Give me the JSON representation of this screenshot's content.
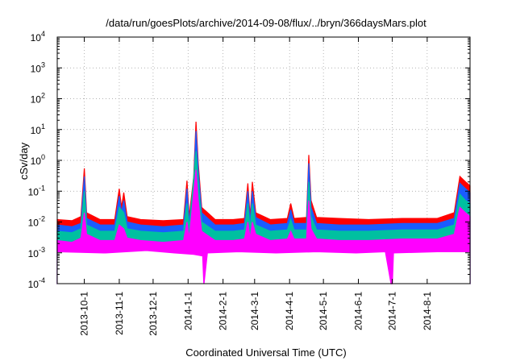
{
  "chart_data": {
    "type": "area",
    "title": "/data/run/goesPlots/archive/2014-09-08/flux/../bryn/366daysMars.plot",
    "xlabel": "Coordinated Universal Time (UTC)",
    "ylabel": "cSv/day",
    "y_scale": "log",
    "ylim": [
      0.0001,
      10000
    ],
    "y_ticks": [
      {
        "value": 0.0001,
        "base": "10",
        "exp": "-4"
      },
      {
        "value": 0.001,
        "base": "10",
        "exp": "-3"
      },
      {
        "value": 0.01,
        "base": "10",
        "exp": "-2"
      },
      {
        "value": 0.1,
        "base": "10",
        "exp": "-1"
      },
      {
        "value": 1,
        "base": "10",
        "exp": "0"
      },
      {
        "value": 10,
        "base": "10",
        "exp": "1"
      },
      {
        "value": 100,
        "base": "10",
        "exp": "2"
      },
      {
        "value": 1000,
        "base": "10",
        "exp": "3"
      },
      {
        "value": 10000,
        "base": "10",
        "exp": "4"
      }
    ],
    "xlim": [
      "2013-09-07",
      "2014-09-08"
    ],
    "x_ticks": [
      {
        "label": "2013-10-1",
        "date": "2013-10-01"
      },
      {
        "label": "2013-11-1",
        "date": "2013-11-01"
      },
      {
        "label": "2013-12-1",
        "date": "2013-12-01"
      },
      {
        "label": "2014-1-1",
        "date": "2014-01-01"
      },
      {
        "label": "2014-2-1",
        "date": "2014-02-01"
      },
      {
        "label": "2014-3-1",
        "date": "2014-03-01"
      },
      {
        "label": "2014-4-1",
        "date": "2014-04-01"
      },
      {
        "label": "2014-5-1",
        "date": "2014-05-01"
      },
      {
        "label": "2014-6-1",
        "date": "2014-06-01"
      },
      {
        "label": "2014-7-1",
        "date": "2014-07-01"
      },
      {
        "label": "2014-8-1",
        "date": "2014-08-01"
      }
    ],
    "grid": true,
    "series": [
      {
        "color": "#ff0000",
        "points": [
          [
            "2013-09-07",
            0.012
          ],
          [
            "2013-09-20",
            0.011
          ],
          [
            "2013-09-28",
            0.015
          ],
          [
            "2013-10-01",
            0.55
          ],
          [
            "2013-10-03",
            0.02
          ],
          [
            "2013-10-15",
            0.012
          ],
          [
            "2013-10-28",
            0.012
          ],
          [
            "2013-11-01",
            0.12
          ],
          [
            "2013-11-03",
            0.03
          ],
          [
            "2013-11-05",
            0.09
          ],
          [
            "2013-11-08",
            0.015
          ],
          [
            "2013-11-20",
            0.012
          ],
          [
            "2013-12-10",
            0.011
          ],
          [
            "2013-12-28",
            0.012
          ],
          [
            "2013-12-31",
            0.22
          ],
          [
            "2014-01-02",
            0.015
          ],
          [
            "2014-01-06",
            0.3
          ],
          [
            "2014-01-08",
            18
          ],
          [
            "2014-01-10",
            0.8
          ],
          [
            "2014-01-13",
            0.03
          ],
          [
            "2014-01-25",
            0.012
          ],
          [
            "2014-02-10",
            0.012
          ],
          [
            "2014-02-20",
            0.013
          ],
          [
            "2014-02-23",
            0.18
          ],
          [
            "2014-02-25",
            0.015
          ],
          [
            "2014-02-27",
            0.2
          ],
          [
            "2014-03-02",
            0.02
          ],
          [
            "2014-03-15",
            0.012
          ],
          [
            "2014-03-30",
            0.013
          ],
          [
            "2014-04-02",
            0.04
          ],
          [
            "2014-04-05",
            0.013
          ],
          [
            "2014-04-16",
            0.014
          ],
          [
            "2014-04-18",
            1.5
          ],
          [
            "2014-04-20",
            0.05
          ],
          [
            "2014-04-25",
            0.014
          ],
          [
            "2014-05-15",
            0.013
          ],
          [
            "2014-06-10",
            0.012
          ],
          [
            "2014-07-10",
            0.013
          ],
          [
            "2014-08-10",
            0.013
          ],
          [
            "2014-08-25",
            0.02
          ],
          [
            "2014-08-30",
            0.3
          ],
          [
            "2014-09-04",
            0.2
          ],
          [
            "2014-09-08",
            0.15
          ]
        ]
      },
      {
        "color": "#1a5cff",
        "points": [
          [
            "2013-09-07",
            0.008
          ],
          [
            "2013-09-20",
            0.007
          ],
          [
            "2013-09-28",
            0.009
          ],
          [
            "2013-10-01",
            0.3
          ],
          [
            "2013-10-03",
            0.013
          ],
          [
            "2013-10-15",
            0.008
          ],
          [
            "2013-10-28",
            0.008
          ],
          [
            "2013-11-01",
            0.07
          ],
          [
            "2013-11-03",
            0.02
          ],
          [
            "2013-11-05",
            0.05
          ],
          [
            "2013-11-08",
            0.01
          ],
          [
            "2013-11-20",
            0.008
          ],
          [
            "2013-12-10",
            0.007
          ],
          [
            "2013-12-28",
            0.008
          ],
          [
            "2013-12-31",
            0.12
          ],
          [
            "2014-01-02",
            0.01
          ],
          [
            "2014-01-06",
            0.2
          ],
          [
            "2014-01-08",
            9
          ],
          [
            "2014-01-10",
            0.5
          ],
          [
            "2014-01-13",
            0.02
          ],
          [
            "2014-01-25",
            0.008
          ],
          [
            "2014-02-10",
            0.008
          ],
          [
            "2014-02-20",
            0.009
          ],
          [
            "2014-02-23",
            0.1
          ],
          [
            "2014-02-25",
            0.01
          ],
          [
            "2014-02-27",
            0.1
          ],
          [
            "2014-03-02",
            0.014
          ],
          [
            "2014-03-15",
            0.008
          ],
          [
            "2014-03-30",
            0.009
          ],
          [
            "2014-04-02",
            0.025
          ],
          [
            "2014-04-05",
            0.009
          ],
          [
            "2014-04-16",
            0.009
          ],
          [
            "2014-04-18",
            0.8
          ],
          [
            "2014-04-20",
            0.03
          ],
          [
            "2014-04-25",
            0.009
          ],
          [
            "2014-05-15",
            0.008
          ],
          [
            "2014-06-10",
            0.008
          ],
          [
            "2014-07-10",
            0.009
          ],
          [
            "2014-08-10",
            0.009
          ],
          [
            "2014-08-25",
            0.013
          ],
          [
            "2014-08-30",
            0.18
          ],
          [
            "2014-09-04",
            0.12
          ],
          [
            "2014-09-08",
            0.09
          ]
        ]
      },
      {
        "color": "#00c0a0",
        "points": [
          [
            "2013-09-07",
            0.005
          ],
          [
            "2013-09-20",
            0.0045
          ],
          [
            "2013-09-28",
            0.006
          ],
          [
            "2013-10-01",
            0.1
          ],
          [
            "2013-10-03",
            0.008
          ],
          [
            "2013-10-15",
            0.005
          ],
          [
            "2013-10-28",
            0.005
          ],
          [
            "2013-11-01",
            0.03
          ],
          [
            "2013-11-05",
            0.02
          ],
          [
            "2013-11-08",
            0.006
          ],
          [
            "2013-11-20",
            0.005
          ],
          [
            "2013-12-10",
            0.0045
          ],
          [
            "2013-12-28",
            0.005
          ],
          [
            "2013-12-31",
            0.04
          ],
          [
            "2014-01-02",
            0.006
          ],
          [
            "2014-01-08",
            2
          ],
          [
            "2014-01-10",
            0.2
          ],
          [
            "2014-01-13",
            0.01
          ],
          [
            "2014-01-25",
            0.005
          ],
          [
            "2014-02-10",
            0.005
          ],
          [
            "2014-02-20",
            0.0055
          ],
          [
            "2014-02-23",
            0.04
          ],
          [
            "2014-02-25",
            0.006
          ],
          [
            "2014-02-27",
            0.04
          ],
          [
            "2014-03-02",
            0.008
          ],
          [
            "2014-03-15",
            0.005
          ],
          [
            "2014-03-30",
            0.0055
          ],
          [
            "2014-04-02",
            0.012
          ],
          [
            "2014-04-05",
            0.0055
          ],
          [
            "2014-04-16",
            0.0055
          ],
          [
            "2014-04-18",
            0.2
          ],
          [
            "2014-04-20",
            0.015
          ],
          [
            "2014-04-25",
            0.0055
          ],
          [
            "2014-05-15",
            0.005
          ],
          [
            "2014-06-10",
            0.005
          ],
          [
            "2014-07-10",
            0.0055
          ],
          [
            "2014-08-10",
            0.0055
          ],
          [
            "2014-08-25",
            0.008
          ],
          [
            "2014-08-30",
            0.08
          ],
          [
            "2014-09-04",
            0.05
          ],
          [
            "2014-09-08",
            0.04
          ]
        ]
      },
      {
        "color": "#ff00ff",
        "points": [
          [
            "2013-09-07",
            0.0025
          ],
          [
            "2013-09-20",
            0.0022
          ],
          [
            "2013-09-28",
            0.003
          ],
          [
            "2013-10-01",
            0.02
          ],
          [
            "2013-10-03",
            0.004
          ],
          [
            "2013-10-15",
            0.0025
          ],
          [
            "2013-10-28",
            0.0025
          ],
          [
            "2013-11-01",
            0.008
          ],
          [
            "2013-11-05",
            0.006
          ],
          [
            "2013-11-08",
            0.003
          ],
          [
            "2013-11-20",
            0.0025
          ],
          [
            "2013-12-10",
            0.0022
          ],
          [
            "2013-12-28",
            0.0025
          ],
          [
            "2013-12-31",
            0.01
          ],
          [
            "2014-01-02",
            0.003
          ],
          [
            "2014-01-08",
            0.5
          ],
          [
            "2014-01-10",
            0.05
          ],
          [
            "2014-01-13",
            0.005
          ],
          [
            "2014-01-25",
            0.0025
          ],
          [
            "2014-02-10",
            0.0025
          ],
          [
            "2014-02-20",
            0.0028
          ],
          [
            "2014-02-23",
            0.01
          ],
          [
            "2014-02-25",
            0.003
          ],
          [
            "2014-02-27",
            0.01
          ],
          [
            "2014-03-02",
            0.004
          ],
          [
            "2014-03-15",
            0.0025
          ],
          [
            "2014-03-30",
            0.0028
          ],
          [
            "2014-04-02",
            0.005
          ],
          [
            "2014-04-05",
            0.0028
          ],
          [
            "2014-04-16",
            0.0028
          ],
          [
            "2014-04-18",
            0.05
          ],
          [
            "2014-04-20",
            0.006
          ],
          [
            "2014-04-25",
            0.0028
          ],
          [
            "2014-05-15",
            0.0025
          ],
          [
            "2014-06-10",
            0.0025
          ],
          [
            "2014-07-10",
            0.0028
          ],
          [
            "2014-08-10",
            0.0028
          ],
          [
            "2014-08-25",
            0.004
          ],
          [
            "2014-08-30",
            0.03
          ],
          [
            "2014-09-04",
            0.02
          ],
          [
            "2014-09-08",
            0.015
          ]
        ]
      }
    ],
    "floor_series": {
      "color": "#ff00ff",
      "points": [
        [
          "2013-09-07",
          0.0011
        ],
        [
          "2013-10-20",
          0.001
        ],
        [
          "2013-11-25",
          0.0012
        ],
        [
          "2013-12-20",
          0.001
        ],
        [
          "2014-01-06",
          0.0009
        ],
        [
          "2014-01-14",
          0.0008
        ],
        [
          "2014-01-15",
          0.0001
        ],
        [
          "2014-01-18",
          0.001
        ],
        [
          "2014-02-15",
          0.0011
        ],
        [
          "2014-03-20",
          0.001
        ],
        [
          "2014-04-25",
          0.0011
        ],
        [
          "2014-05-30",
          0.001
        ],
        [
          "2014-06-25",
          0.0011
        ],
        [
          "2014-06-30",
          0.0001
        ],
        [
          "2014-07-01",
          0.0001
        ],
        [
          "2014-07-02",
          0.001
        ],
        [
          "2014-08-10",
          0.0011
        ],
        [
          "2014-09-08",
          0.0011
        ]
      ]
    }
  }
}
